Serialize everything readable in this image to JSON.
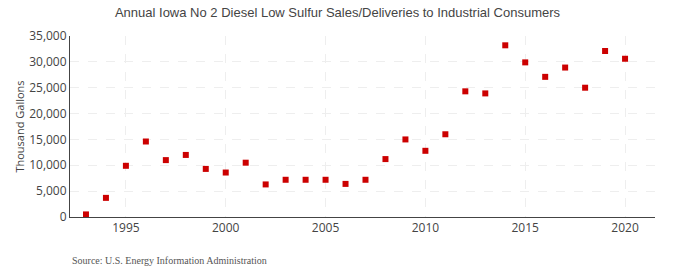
{
  "chart_data": {
    "type": "scatter",
    "title": "Annual Iowa No 2 Diesel Low Sulfur Sales/Deliveries to Industrial Consumers",
    "ylabel": "Thousand Gallons",
    "annotations": [
      "Source: U.S. Energy Information Administration"
    ],
    "x": [
      1993,
      1994,
      1995,
      1996,
      1997,
      1998,
      1999,
      2000,
      2001,
      2002,
      2003,
      2004,
      2005,
      2006,
      2007,
      2008,
      2009,
      2010,
      2011,
      2012,
      2013,
      2014,
      2015,
      2016,
      2017,
      2018,
      2019,
      2020
    ],
    "values": [
      500,
      3700,
      9900,
      14600,
      11000,
      12000,
      9300,
      8600,
      10500,
      6300,
      7200,
      7200,
      7200,
      6400,
      7200,
      11200,
      15000,
      12800,
      16000,
      24300,
      23900,
      33200,
      29900,
      27100,
      28900,
      25000,
      32100,
      30600
    ],
    "color": "#cc0000",
    "marker": "square",
    "xlim": [
      1992.2,
      2021.5
    ],
    "xticks": [
      1995,
      2000,
      2005,
      2010,
      2015,
      2020
    ],
    "ylim": [
      0,
      35000
    ],
    "yticks": [
      0,
      {
        "value": 5000,
        "label": "5,000"
      },
      {
        "value": 10000,
        "label": "10,000"
      },
      {
        "value": 15000,
        "label": "15,000"
      },
      {
        "value": 20000,
        "label": "20,000"
      },
      {
        "value": 25000,
        "label": "25,000"
      },
      {
        "value": 30000,
        "label": "30,000"
      },
      {
        "value": 35000,
        "label": "35,000"
      }
    ],
    "grid": true
  }
}
